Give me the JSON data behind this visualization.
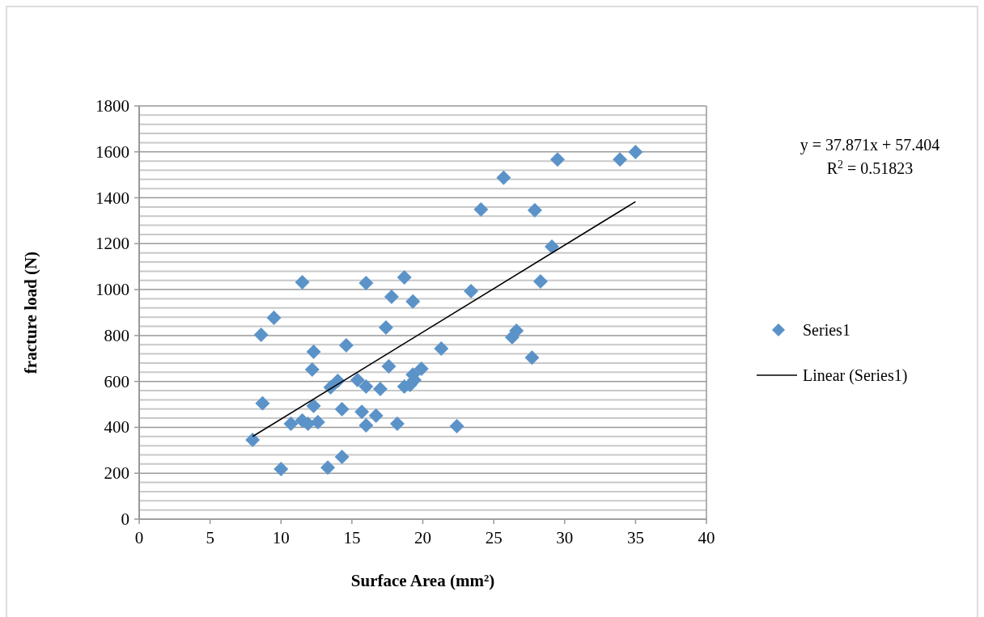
{
  "chart_data": {
    "type": "scatter",
    "xlabel": "Surface Area (mm²)",
    "ylabel": "fracture load (N)",
    "xlim": [
      0,
      40
    ],
    "xticks": [
      0,
      5,
      10,
      15,
      20,
      25,
      30,
      35,
      40
    ],
    "ylim": [
      0,
      1800
    ],
    "yticks": [
      0,
      {
        "value": 40,
        "label": null
      },
      {
        "value": 80,
        "label": null
      },
      {
        "value": 120,
        "label": null
      },
      {
        "value": 160,
        "label": null
      },
      200,
      {
        "value": 240,
        "label": null
      },
      {
        "value": 280,
        "label": null
      },
      {
        "value": 320,
        "label": null
      },
      {
        "value": 360,
        "label": null
      },
      400,
      {
        "value": 440,
        "label": null
      },
      {
        "value": 480,
        "label": null
      },
      {
        "value": 520,
        "label": null
      },
      {
        "value": 560,
        "label": null
      },
      600,
      {
        "value": 640,
        "label": null
      },
      {
        "value": 680,
        "label": null
      },
      {
        "value": 720,
        "label": null
      },
      {
        "value": 760,
        "label": null
      },
      800,
      {
        "value": 840,
        "label": null
      },
      {
        "value": 880,
        "label": null
      },
      {
        "value": 920,
        "label": null
      },
      {
        "value": 960,
        "label": null
      },
      1000,
      {
        "value": 1040,
        "label": null
      },
      {
        "value": 1080,
        "label": null
      },
      {
        "value": 1120,
        "label": null
      },
      {
        "value": 1160,
        "label": null
      },
      1200,
      {
        "value": 1240,
        "label": null
      },
      {
        "value": 1280,
        "label": null
      },
      {
        "value": 1320,
        "label": null
      },
      {
        "value": 1360,
        "label": null
      },
      1400,
      {
        "value": 1440,
        "label": null
      },
      {
        "value": 1480,
        "label": null
      },
      {
        "value": 1520,
        "label": null
      },
      {
        "value": 1560,
        "label": null
      },
      1600,
      {
        "value": 1640,
        "label": null
      },
      {
        "value": 1680,
        "label": null
      },
      {
        "value": 1720,
        "label": null
      },
      {
        "value": 1760,
        "label": null
      },
      1800
    ],
    "grid": "y",
    "legend": "right",
    "marker": "diamond",
    "annotations": [
      "y = 37.871x + 57.404",
      "R$^{2}$ = 0.51823"
    ],
    "series": [
      {
        "name": "Series1",
        "color": "#5b93c9",
        "x": [
          8.0,
          8.6,
          8.7,
          9.5,
          10.0,
          10.7,
          11.5,
          11.5,
          11.9,
          12.2,
          12.3,
          12.3,
          12.6,
          13.3,
          13.5,
          14.0,
          14.3,
          14.3,
          14.6,
          15.4,
          16.0,
          15.7,
          16.0,
          16.0,
          16.7,
          17.0,
          17.4,
          17.6,
          17.8,
          18.2,
          18.7,
          18.7,
          19.3,
          19.1,
          19.3,
          19.4,
          19.9,
          21.3,
          22.4,
          23.4,
          24.1,
          25.7,
          26.3,
          26.6,
          27.7,
          27.9,
          28.3,
          29.1,
          29.5,
          33.9,
          35.0
        ],
        "values": [
          345,
          803,
          505,
          877,
          218,
          416,
          1032,
          430,
          416,
          652,
          729,
          493,
          423,
          225,
          574,
          602,
          271,
          479,
          757,
          606,
          578,
          468,
          409,
          1029,
          451,
          567,
          835,
          666,
          969,
          416,
          1053,
          578,
          948,
          585,
          630,
          606,
          655,
          743,
          405,
          993,
          1349,
          1487,
          793,
          821,
          704,
          1346,
          1036,
          1187,
          1567,
          1567,
          1599
        ]
      },
      {
        "name": "Linear (Series1)",
        "type": "line",
        "color": "#000000",
        "marker": "none",
        "line_style": "solid",
        "x": [
          8.0,
          35.0
        ],
        "values": [
          360,
          1383
        ]
      }
    ]
  }
}
